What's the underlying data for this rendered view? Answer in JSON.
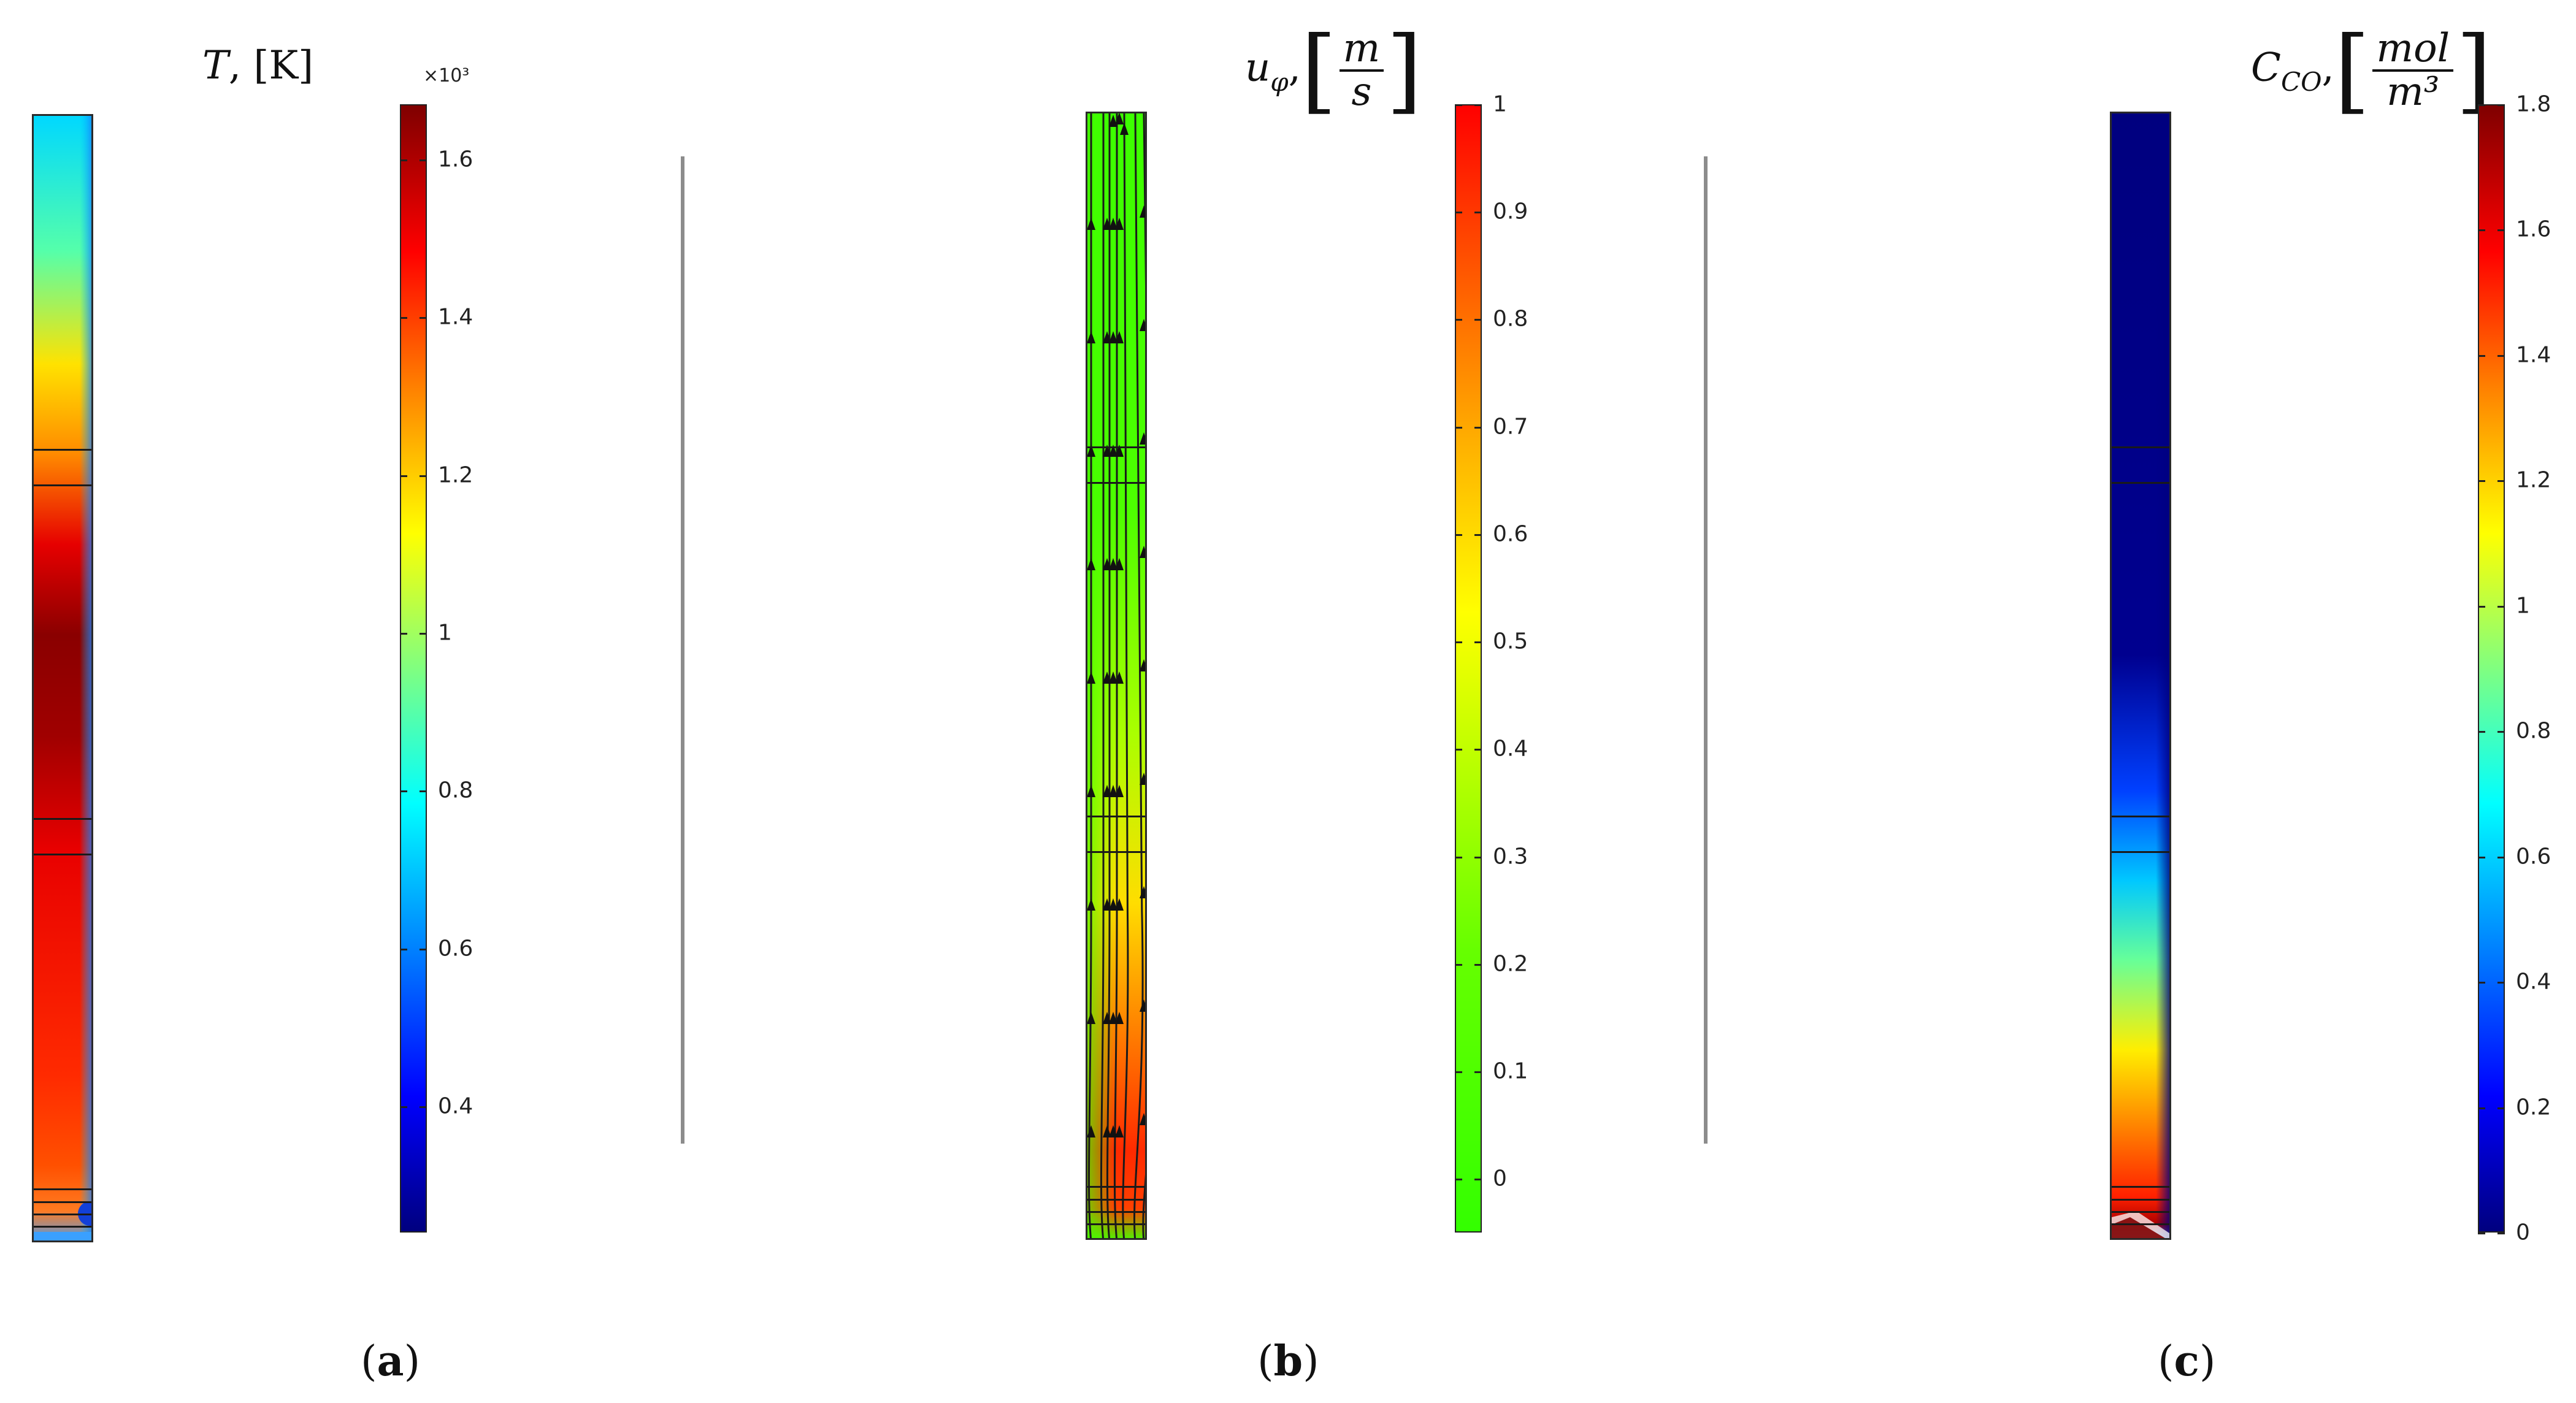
{
  "panels": [
    {
      "id": "a",
      "quantity": "T",
      "unit": "K",
      "title_symbol": "T",
      "title_unit_text": "[K]",
      "colorbar": {
        "colormap": "jet",
        "multiplier": "×10³",
        "ticks": [
          "1.6",
          "1.4",
          "1.2",
          "1",
          "0.8",
          "0.6",
          "0.4"
        ],
        "range": [
          0.24,
          1.67
        ]
      },
      "caption": "(a)"
    },
    {
      "id": "b",
      "quantity": "u_φ",
      "unit": "m/s",
      "title_symbol": "u",
      "title_sub": "φ",
      "title_num": "m",
      "title_den": "s",
      "colorbar": {
        "colormap": "green-yellow-red",
        "ticks": [
          "1",
          "0.9",
          "0.8",
          "0.7",
          "0.6",
          "0.5",
          "0.4",
          "0.3",
          "0.2",
          "0.1",
          "0"
        ],
        "range": [
          -0.05,
          1.0
        ]
      },
      "streamlines": true,
      "caption": "(b)"
    },
    {
      "id": "c",
      "quantity": "C_CO",
      "unit": "mol/m³",
      "title_symbol": "C",
      "title_sub": "CO",
      "title_num": "mol",
      "title_den": "m³",
      "colorbar": {
        "colormap": "jet",
        "ticks": [
          "1.8",
          "1.6",
          "1.4",
          "1.2",
          "1",
          "0.8",
          "0.6",
          "0.4",
          "0.2",
          "0"
        ],
        "range": [
          0,
          1.8
        ]
      },
      "caption": "(c)"
    }
  ],
  "captions": {
    "a_letter": "a",
    "b_letter": "b",
    "c_letter": "c"
  },
  "colors": {
    "jet_dark_red": "#7f0000",
    "jet_red": "#ff2000",
    "jet_yellow": "#ffee00",
    "jet_cyan": "#00e5ff",
    "jet_blue": "#0040ff",
    "jet_navy": "#00007f",
    "green": "#33ff00",
    "separator": "#8c8c8c"
  }
}
